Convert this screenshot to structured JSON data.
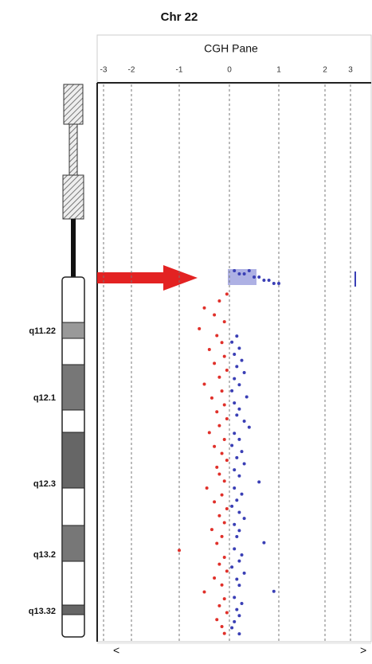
{
  "chart_data": {
    "type": "scatter",
    "title": "Chr 22",
    "subtitle": "CGH Pane",
    "xlim": [
      -3.2,
      3.4
    ],
    "xticks": [
      -3,
      -2,
      -1,
      0,
      1,
      2,
      3
    ],
    "grid": true,
    "bands": [
      "q11.22",
      "q12.1",
      "q12.3",
      "q13.2",
      "q13.32"
    ],
    "series": [
      {
        "color": "#3a3fb5",
        "values": [
          0.1,
          0.3,
          0.5,
          0.7,
          0.9,
          0.4,
          0.2,
          0.6,
          0.8,
          1.0,
          0.15,
          0.05,
          0.2,
          0.1,
          0.25,
          0.15,
          0.3,
          0.1,
          0.2,
          0.05,
          0.35,
          0.1,
          0.2,
          0.15,
          0.3,
          0.4,
          0.1,
          0.2,
          0.05,
          0.25,
          0.15,
          0.3,
          0.1,
          0.2,
          0.6,
          0.1,
          0.25,
          0.15,
          0.05,
          0.2,
          0.3,
          0.1,
          0.2,
          0.15,
          0.7,
          0.1,
          0.25,
          0.2,
          0.05,
          0.3,
          0.15,
          0.2,
          0.9,
          0.1,
          0.25,
          0.15,
          0.2,
          0.1,
          0.05,
          0.2
        ]
      },
      {
        "color": "#e0302a",
        "values": [
          -0.05,
          -0.2,
          -0.5,
          -0.3,
          -0.1,
          -0.6,
          -0.25,
          -0.15,
          -0.4,
          -0.1,
          -0.3,
          -0.05,
          -0.2,
          -0.5,
          -0.15,
          -0.35,
          -0.1,
          -0.25,
          -0.05,
          -0.2,
          -0.4,
          -0.1,
          -0.3,
          -0.15,
          -0.05,
          -0.25,
          -0.2,
          -0.1,
          -0.45,
          -0.15,
          -0.3,
          -0.05,
          -0.2,
          -0.1,
          -0.35,
          -0.15,
          -0.25,
          -1.0,
          -0.1,
          -0.2,
          -0.05,
          -0.3,
          -0.15,
          -0.5,
          -0.1,
          -0.2,
          -0.05,
          -0.25,
          -0.15,
          -0.1
        ]
      }
    ]
  }
}
